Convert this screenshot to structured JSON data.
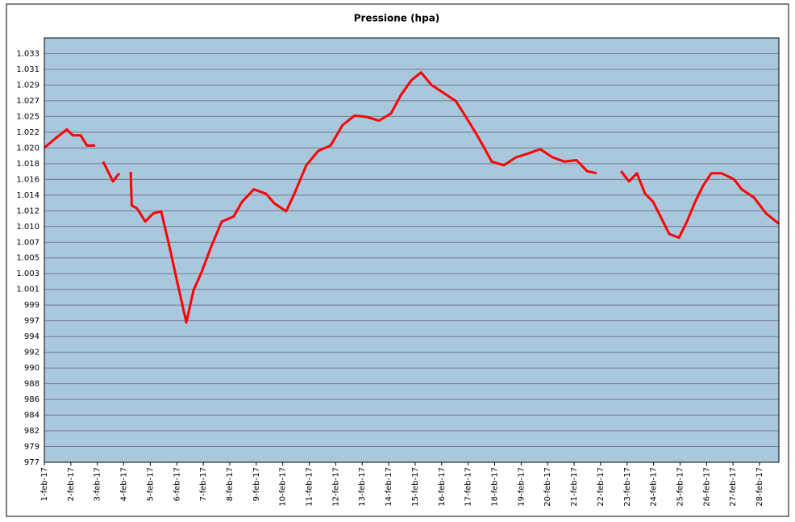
{
  "chart_data": {
    "type": "line",
    "title": "Pressione (hpa)",
    "x": [
      0,
      0.46,
      0.85,
      1.07,
      1.37,
      1.61,
      1.92,
      2.07,
      2.22,
      2.59,
      2.83,
      2.95,
      3.26,
      3.3,
      3.5,
      3.81,
      4.11,
      4.41,
      4.72,
      5.02,
      5.36,
      5.63,
      5.94,
      6.3,
      6.7,
      7.15,
      7.46,
      7.91,
      8.37,
      8.68,
      9.13,
      9.44,
      9.89,
      10.35,
      10.81,
      11.26,
      11.72,
      12.18,
      12.63,
      13.09,
      13.46,
      13.85,
      14.22,
      14.61,
      15.07,
      15.53,
      15.83,
      16.29,
      16.59,
      16.89,
      17.35,
      17.81,
      18.26,
      18.72,
      19.18,
      19.63,
      20.09,
      20.49,
      20.85,
      21.3,
      21.77,
      22.07,
      22.37,
      22.68,
      22.98,
      23.29,
      23.59,
      23.96,
      24.26,
      24.57,
      24.87,
      25.18,
      25.57,
      26.03,
      26.33,
      26.79,
      27.25,
      27.73
    ],
    "values": [
      1020.3,
      1021.7,
      1022.8,
      1022,
      1022,
      1020.6,
      1020.6,
      null,
      1018.4,
      1015.7,
      1016.8,
      null,
      1017,
      1012.4,
      1012,
      1010.2,
      1011.3,
      1011.6,
      1006.8,
      1001.9,
      996.4,
      1000.8,
      1003.3,
      1006.8,
      1010.2,
      1010.9,
      1012.9,
      1014.6,
      1014,
      1012.7,
      1011.6,
      1014,
      1017.9,
      1019.9,
      1020.6,
      1023.4,
      1024.7,
      1024.5,
      1024,
      1025,
      1027.5,
      1029.5,
      1030.6,
      1028.9,
      1027.8,
      1026.7,
      1025,
      1022.3,
      1020.4,
      1018.4,
      1017.9,
      1019,
      1019.5,
      1020.1,
      1019,
      1018.4,
      1018.6,
      1017.1,
      1016.8,
      null,
      1017.1,
      1015.7,
      1016.8,
      1014,
      1012.9,
      1010.7,
      1008.5,
      1008,
      1010.2,
      1012.9,
      1015.1,
      1016.8,
      1016.8,
      1016,
      1014.6,
      1013.5,
      1011.3,
      1009.9
    ],
    "color": "#ff0000",
    "xlim": [
      0,
      27.73
    ],
    "xticks": [
      {
        "value": 0,
        "label": "1-feb-17"
      },
      {
        "value": 1,
        "label": "2-feb-17"
      },
      {
        "value": 2,
        "label": "3-feb-17"
      },
      {
        "value": 3,
        "label": "4-feb-17"
      },
      {
        "value": 4,
        "label": "5-feb-17"
      },
      {
        "value": 5,
        "label": "6-feb-17"
      },
      {
        "value": 6,
        "label": "7-feb-17"
      },
      {
        "value": 7,
        "label": "8-feb-17"
      },
      {
        "value": 8,
        "label": "9-feb-17"
      },
      {
        "value": 9,
        "label": "10-feb-17"
      },
      {
        "value": 10,
        "label": "11-feb-17"
      },
      {
        "value": 11,
        "label": "12-feb-17"
      },
      {
        "value": 12,
        "label": "13-feb-17"
      },
      {
        "value": 13,
        "label": "14-feb-17"
      },
      {
        "value": 14,
        "label": "15-feb-17"
      },
      {
        "value": 15,
        "label": "16-feb-17"
      },
      {
        "value": 16,
        "label": "17-feb-17"
      },
      {
        "value": 17,
        "label": "18-feb-17"
      },
      {
        "value": 18,
        "label": "19-feb-17"
      },
      {
        "value": 19,
        "label": "20-feb-17"
      },
      {
        "value": 20,
        "label": "21-feb-17"
      },
      {
        "value": 21,
        "label": "22-feb-17"
      },
      {
        "value": 22,
        "label": "23-feb-17"
      },
      {
        "value": 23,
        "label": "24-feb-17"
      },
      {
        "value": 24,
        "label": "25-feb-17"
      },
      {
        "value": 25,
        "label": "26-feb-17"
      },
      {
        "value": 26,
        "label": "27-feb-17"
      },
      {
        "value": 27,
        "label": "28-feb-17"
      }
    ],
    "ylim": [
      977.27,
      1035.32
    ],
    "yticks": [
      {
        "value": 977.27,
        "label": "977"
      },
      {
        "value": 979.42,
        "label": "979"
      },
      {
        "value": 981.57,
        "label": "982"
      },
      {
        "value": 983.72,
        "label": "984"
      },
      {
        "value": 985.87,
        "label": "986"
      },
      {
        "value": 988.02,
        "label": "988"
      },
      {
        "value": 990.17,
        "label": "990"
      },
      {
        "value": 992.32,
        "label": "992"
      },
      {
        "value": 994.47,
        "label": "994"
      },
      {
        "value": 996.62,
        "label": "997"
      },
      {
        "value": 998.77,
        "label": "999"
      },
      {
        "value": 1000.92,
        "label": "1.001"
      },
      {
        "value": 1003.07,
        "label": "1.003"
      },
      {
        "value": 1005.22,
        "label": "1.005"
      },
      {
        "value": 1007.37,
        "label": "1.007"
      },
      {
        "value": 1009.52,
        "label": "1.010"
      },
      {
        "value": 1011.67,
        "label": "1.012"
      },
      {
        "value": 1013.82,
        "label": "1.014"
      },
      {
        "value": 1015.97,
        "label": "1.016"
      },
      {
        "value": 1018.12,
        "label": "1.018"
      },
      {
        "value": 1020.27,
        "label": "1.020"
      },
      {
        "value": 1022.42,
        "label": "1.022"
      },
      {
        "value": 1024.57,
        "label": "1.025"
      },
      {
        "value": 1026.72,
        "label": "1.027"
      },
      {
        "value": 1028.87,
        "label": "1.029"
      },
      {
        "value": 1031.02,
        "label": "1.031"
      },
      {
        "value": 1033.17,
        "label": "1.033"
      }
    ],
    "grid": true
  }
}
